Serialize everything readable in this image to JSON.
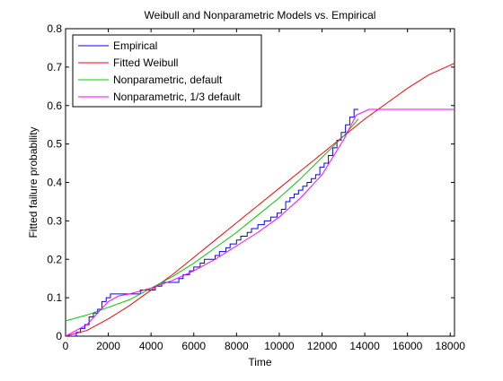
{
  "chart_data": {
    "type": "line",
    "title": "Weibull and Nonparametric Models vs. Empirical",
    "xlabel": "Time",
    "ylabel": "Fitted failure probability",
    "xlim": [
      0,
      18200
    ],
    "ylim": [
      0,
      0.8
    ],
    "xticks": [
      0,
      2000,
      4000,
      6000,
      8000,
      10000,
      12000,
      14000,
      16000,
      18000
    ],
    "yticks": [
      0,
      0.1,
      0.2,
      0.3,
      0.4,
      0.5,
      0.6,
      0.7,
      0.8
    ],
    "xtick_labels": [
      "0",
      "2000",
      "4000",
      "6000",
      "8000",
      "10000",
      "12000",
      "14000",
      "16000",
      "18000"
    ],
    "ytick_labels": [
      "0",
      "0.1",
      "0.2",
      "0.3",
      "0.4",
      "0.5",
      "0.6",
      "0.7",
      "0.8"
    ],
    "grid": false,
    "legend_position": "top-left",
    "series": [
      {
        "name": "Empirical",
        "color": "#0000ff",
        "step": true,
        "x": [
          0,
          500,
          700,
          900,
          1100,
          1300,
          1500,
          1700,
          1900,
          2100,
          3500,
          3800,
          4000,
          4200,
          4500,
          5300,
          5500,
          5800,
          6000,
          6300,
          6500,
          7000,
          7200,
          7500,
          7700,
          8000,
          8200,
          8500,
          8700,
          9000,
          9300,
          9600,
          9900,
          10100,
          10300,
          10500,
          10700,
          10900,
          11100,
          11300,
          11500,
          11700,
          11900,
          12100,
          12300,
          12500,
          12700,
          12900,
          13100,
          13300,
          13500,
          13700
        ],
        "y": [
          0,
          0.01,
          0.02,
          0.03,
          0.05,
          0.06,
          0.07,
          0.09,
          0.1,
          0.11,
          0.12,
          0.12,
          0.12,
          0.13,
          0.14,
          0.15,
          0.16,
          0.17,
          0.18,
          0.19,
          0.2,
          0.21,
          0.22,
          0.23,
          0.24,
          0.25,
          0.26,
          0.27,
          0.28,
          0.29,
          0.3,
          0.31,
          0.32,
          0.33,
          0.35,
          0.36,
          0.37,
          0.38,
          0.39,
          0.4,
          0.41,
          0.42,
          0.44,
          0.45,
          0.47,
          0.49,
          0.51,
          0.53,
          0.55,
          0.57,
          0.59,
          0.59
        ]
      },
      {
        "name": "Fitted Weibull",
        "color": "#ff0000",
        "x": [
          0,
          1000,
          2000,
          3000,
          4000,
          5000,
          6000,
          7000,
          8000,
          9000,
          10000,
          11000,
          12000,
          13000,
          14000,
          15000,
          16000,
          17000,
          18200
        ],
        "y": [
          0,
          0.015,
          0.045,
          0.08,
          0.12,
          0.16,
          0.205,
          0.25,
          0.295,
          0.34,
          0.385,
          0.43,
          0.475,
          0.52,
          0.565,
          0.605,
          0.645,
          0.68,
          0.71
        ]
      },
      {
        "name": "Nonparametric, default",
        "color": "#00cc00",
        "x": [
          0,
          1000,
          2000,
          3000,
          4000,
          5000,
          6000,
          7000,
          8000,
          9000,
          10000,
          11000,
          12000,
          13000,
          13700
        ],
        "y": [
          0.04,
          0.055,
          0.075,
          0.095,
          0.125,
          0.155,
          0.19,
          0.23,
          0.27,
          0.315,
          0.36,
          0.41,
          0.465,
          0.52,
          0.565
        ]
      },
      {
        "name": "Nonparametric, 1/3 default",
        "color": "#ff00ff",
        "x": [
          0,
          500,
          1000,
          1500,
          2000,
          2500,
          3000,
          4000,
          5000,
          6000,
          7000,
          8000,
          9000,
          10000,
          11000,
          12000,
          13000,
          13600,
          14200,
          18200
        ],
        "y": [
          0,
          0.015,
          0.03,
          0.06,
          0.09,
          0.105,
          0.11,
          0.125,
          0.145,
          0.17,
          0.2,
          0.235,
          0.27,
          0.31,
          0.36,
          0.42,
          0.51,
          0.575,
          0.59,
          0.59
        ]
      }
    ]
  }
}
